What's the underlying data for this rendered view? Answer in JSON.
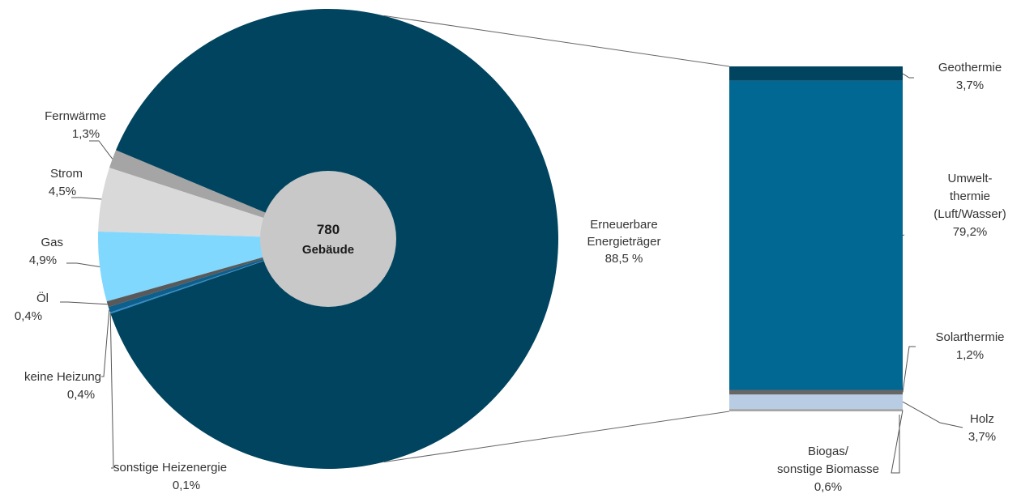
{
  "chart_data": [
    {
      "type": "pie",
      "center_label": {
        "value": "780",
        "unit": "Gebäude"
      },
      "slices": [
        {
          "key": "fernwaerme",
          "label": "Fernwärme",
          "value_text": "1,3%",
          "value": 1.3,
          "color": "#a5a5a5"
        },
        {
          "key": "strom",
          "label": "Strom",
          "value_text": "4,5%",
          "value": 4.5,
          "color": "#d9d9d9"
        },
        {
          "key": "gas",
          "label": "Gas",
          "value_text": "4,9%",
          "value": 4.9,
          "color": "#80d8ff"
        },
        {
          "key": "oel",
          "label": "Öl",
          "value_text": "0,4%",
          "value": 0.4,
          "color": "#595959"
        },
        {
          "key": "keine",
          "label": "keine Heizung",
          "value_text": "0,4%",
          "value": 0.4,
          "color": "#0e5f8c"
        },
        {
          "key": "sonstige",
          "label": "sonstige Heizenergie",
          "value_text": "0,1%",
          "value": 0.1,
          "color": "#2d8bc9"
        },
        {
          "key": "erneuerbar",
          "label_lines": [
            "Erneuerbare",
            "Energieträger"
          ],
          "value_text": "88,5 %",
          "value": 88.5,
          "color": "#00445f"
        }
      ]
    },
    {
      "type": "bar",
      "stacked": true,
      "segments": [
        {
          "key": "geo",
          "label_lines": [
            "Geothermie"
          ],
          "value_text": "3,7%",
          "value": 3.7,
          "color": "#00445f"
        },
        {
          "key": "umwelt",
          "label_lines": [
            "Umwelt-",
            "thermie",
            "(Luft/Wasser)"
          ],
          "value_text": "79,2%",
          "value": 79.2,
          "color": "#006892"
        },
        {
          "key": "solar",
          "label_lines": [
            "Solarthermie"
          ],
          "value_text": "1,2%",
          "value": 1.2,
          "color": "#666666"
        },
        {
          "key": "holz",
          "label_lines": [
            "Holz"
          ],
          "value_text": "3,7%",
          "value": 3.7,
          "color": "#b8cce4"
        },
        {
          "key": "biogas",
          "label_lines": [
            "Biogas/",
            "sonstige Biomasse"
          ],
          "value_text": "0,6%",
          "value": 0.6,
          "color": "#a6a6a6"
        }
      ]
    }
  ]
}
